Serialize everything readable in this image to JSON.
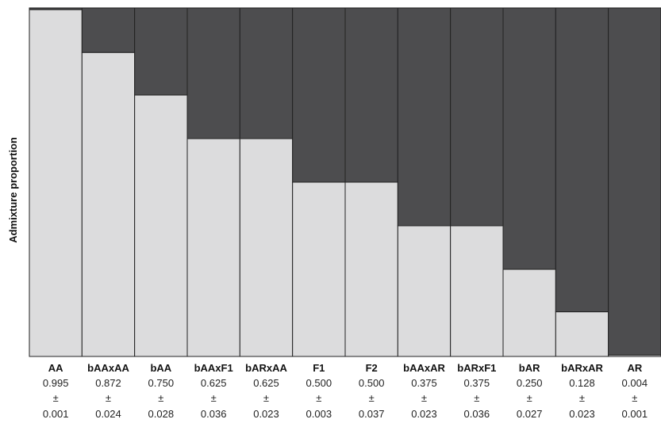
{
  "chart_data": {
    "type": "bar",
    "stacked": true,
    "ylabel": "Admixture proportion",
    "ylim": [
      0,
      1
    ],
    "grid": false,
    "categories": [
      "AA",
      "bAAxAA",
      "bAA",
      "bAAxF1",
      "bARxAA",
      "F1",
      "F2",
      "bAAxAR",
      "bARxF1",
      "bAR",
      "bARxAR",
      "AR"
    ],
    "series": [
      {
        "values": [
          0.995,
          0.872,
          0.75,
          0.625,
          0.625,
          0.5,
          0.5,
          0.375,
          0.375,
          0.25,
          0.128,
          0.004
        ],
        "color": "#dcdcdd"
      },
      {
        "values": [
          0.005,
          0.128,
          0.25,
          0.375,
          0.375,
          0.5,
          0.5,
          0.625,
          0.625,
          0.75,
          0.872,
          0.996
        ],
        "color": "#4d4d4f"
      }
    ],
    "value_labels": [
      "0.995",
      "0.872",
      "0.750",
      "0.625",
      "0.625",
      "0.500",
      "0.500",
      "0.375",
      "0.375",
      "0.250",
      "0.128",
      "0.004"
    ],
    "pm_symbol": "±",
    "error_labels": [
      "0.001",
      "0.024",
      "0.028",
      "0.036",
      "0.023",
      "0.003",
      "0.037",
      "0.023",
      "0.036",
      "0.027",
      "0.023",
      "0.001"
    ]
  }
}
